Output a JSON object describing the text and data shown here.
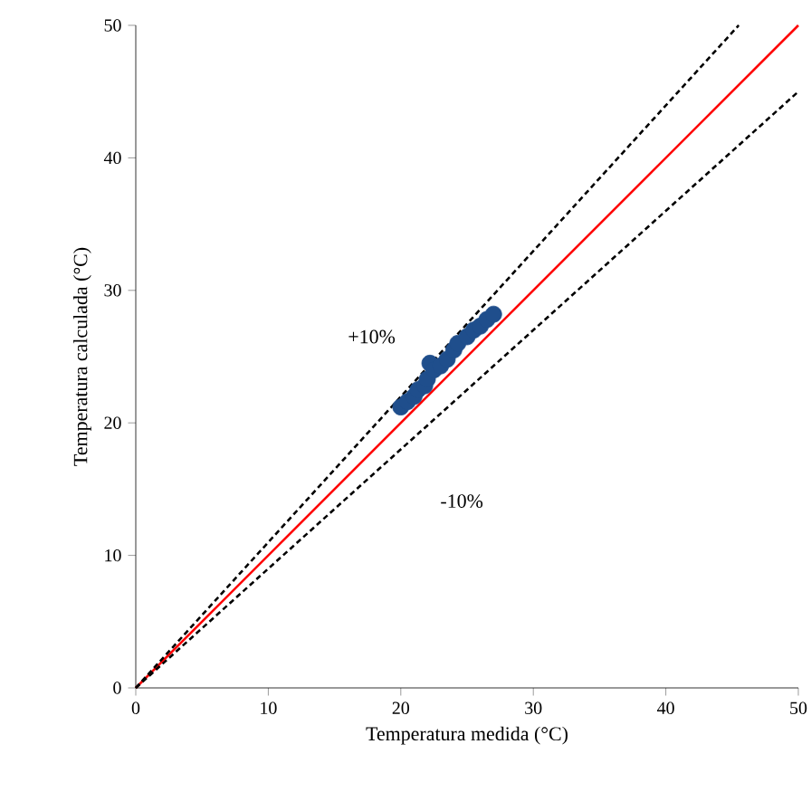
{
  "chart_data": {
    "type": "scatter",
    "xlabel": "Temperatura medida (°C)",
    "ylabel": "Temperatura calculada (°C)",
    "xlim": [
      0,
      50
    ],
    "ylim": [
      0,
      50
    ],
    "xticks": [
      0,
      10,
      20,
      30,
      40,
      50
    ],
    "yticks": [
      0,
      10,
      20,
      30,
      40,
      50
    ],
    "grid": false,
    "marker": "circle",
    "series": [
      {
        "color": "#1f4e8c",
        "x": [
          20,
          20.5,
          21,
          21.3,
          21.8,
          22,
          22.2,
          22.5,
          23,
          23.5,
          24,
          24.3,
          25,
          25.5,
          26,
          26.5,
          27
        ],
        "values": [
          21.2,
          21.6,
          22,
          22.5,
          22.8,
          23.3,
          24.5,
          24,
          24.3,
          24.8,
          25.5,
          26,
          26.5,
          27,
          27.3,
          27.8,
          28.2
        ]
      },
      {
        "type": "line",
        "marker": "none",
        "color": "#ff0000",
        "line_style": "solid",
        "x": [
          0,
          50
        ],
        "values": [
          0,
          50
        ]
      },
      {
        "type": "line",
        "marker": "none",
        "color": "#000000",
        "line_style": "dashed",
        "x": [
          0,
          45.5
        ],
        "values": [
          0,
          50
        ]
      },
      {
        "type": "line",
        "marker": "none",
        "color": "#000000",
        "line_style": "dashed",
        "x": [
          0,
          50
        ],
        "values": [
          0,
          45
        ]
      }
    ],
    "annotations": [
      "+10%",
      "-10%"
    ]
  }
}
